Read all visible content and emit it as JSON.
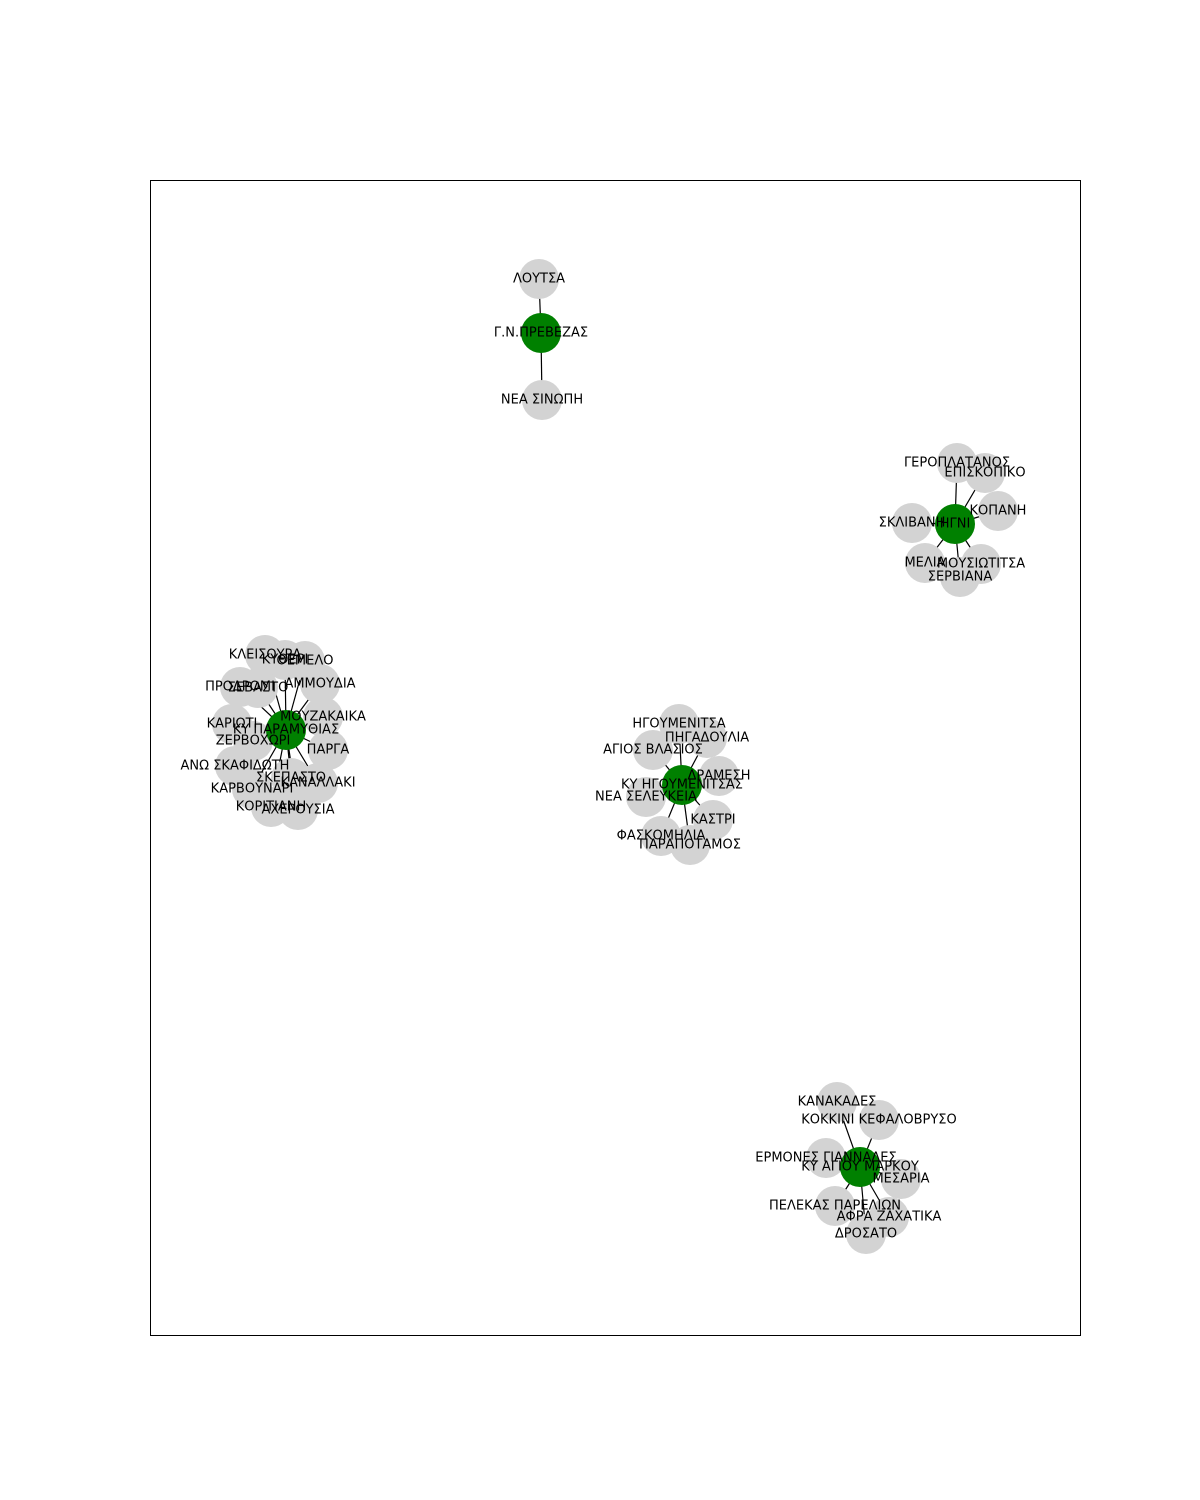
{
  "colors": {
    "hub": "#008000",
    "leaf": "#d3d3d3",
    "edge": "#000000",
    "frame": "#000000",
    "background": "#ffffff"
  },
  "graph": {
    "clusters": [
      {
        "hub": "Γ.Ν.ΠΡΕΒΕΖΑΣ",
        "leaves": [
          "ΛΟΥΤΣΑ",
          "ΝΕΑ ΣΙΝΩΠΗ"
        ]
      },
      {
        "hub": "ΗΓΝΙ",
        "leaves": [
          "ΓΕΡΟΠΛΑΤΑΝΟΣ",
          "ΕΠΙΣΚΟΠΙΚΟ",
          "ΚΟΠΑΝΗ",
          "ΣΚΛΙΒΑΝΗ",
          "ΜΕΛΙΑ",
          "ΜΟΥΣΙΩΤΙΤΣΑ",
          "ΣΕΡΒΙΑΝΑ"
        ]
      },
      {
        "hub": "ΚΥ ΠΑΡΑΜΥΘΙΑΣ",
        "leaves": [
          "ΚΛΕΙΣΟΥΡΑ",
          "ΚΥΘΕΡΙ",
          "ΘΕΜΕΛΟ",
          "ΑΜΜΟΥΔΙΑ",
          "ΠΡΟΔΡΟΜΙ",
          "ΣΕΒΑΣΤΟ",
          "ΜΟΥΖΑΚΑΙΚΑ",
          "ΚΑΡΙΩΤΙ",
          "ΖΕΡΒΟΧΩΡΙ",
          "ΠΑΡΓΑ",
          "ΑΝΩ ΣΚΑΦΙΔΩΤΗ",
          "ΣΚΕΠΑΣΤΟ",
          "ΚΑΝΑΛΛΑΚΙ",
          "ΚΑΡΒΟΥΝΑΡΙ",
          "ΚΟΡΙΤΙΑΝΗ",
          "ΑΧΕΡΟΥΣΙΑ"
        ]
      },
      {
        "hub": "ΚΥ ΗΓΟΥΜΕΝΙΤΣΑΣ",
        "leaves": [
          "ΗΓΟΥΜΕΝΙΤΣΑ",
          "ΠΗΓΑΔΟΥΛΙΑ",
          "ΑΓΙΟΣ ΒΛΑΣΙΟΣ",
          "ΔΡΑΜΕΣΗ",
          "ΝΕΑ ΣΕΛΕΥΚΕΙΑ",
          "ΚΑΣΤΡΙ",
          "ΦΑΣΚΟΜΗΛΙΑ",
          "ΠΑΡΑΠΟΤΑΜΟΣ"
        ]
      },
      {
        "hub": "ΚΥ ΑΓΙΟΥ ΜΑΡΚΟΥ",
        "leaves": [
          "ΚΑΝΑΚΑΔΕΣ",
          "ΚΟΚΚΙΝΙ ΚΕΦΑΛΟΒΡΥΣΟ",
          "ΕΡΜΟΝΕΣ ΓΙΑΝΝΑΔΕΣ",
          "ΜΕΣΑΡΙΑ",
          "ΠΕΛΕΚΑΣ ΠΑΡΕΛΙΩΝ",
          "ΑΦΡΑ ΖΑΧΑΤΙΚΑ",
          "ΔΡΟΣΑΤΟ"
        ]
      }
    ]
  }
}
